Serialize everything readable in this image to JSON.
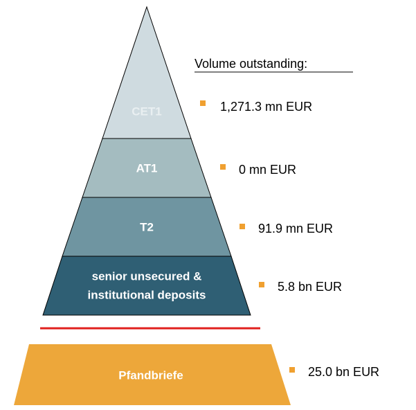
{
  "title": "Volume outstanding:",
  "layers": [
    {
      "label": [
        "CET1"
      ],
      "volume": "1,271.3 mn EUR"
    },
    {
      "label": [
        "AT1"
      ],
      "volume": "0 mn EUR"
    },
    {
      "label": [
        "T2"
      ],
      "volume": "91.9 mn EUR"
    },
    {
      "label": [
        "senior unsecured &",
        "institutional deposits"
      ],
      "volume": "5.8 bn EUR"
    }
  ],
  "base": {
    "label": "Pfandbriefe",
    "volume": "25.0 bn EUR"
  }
}
